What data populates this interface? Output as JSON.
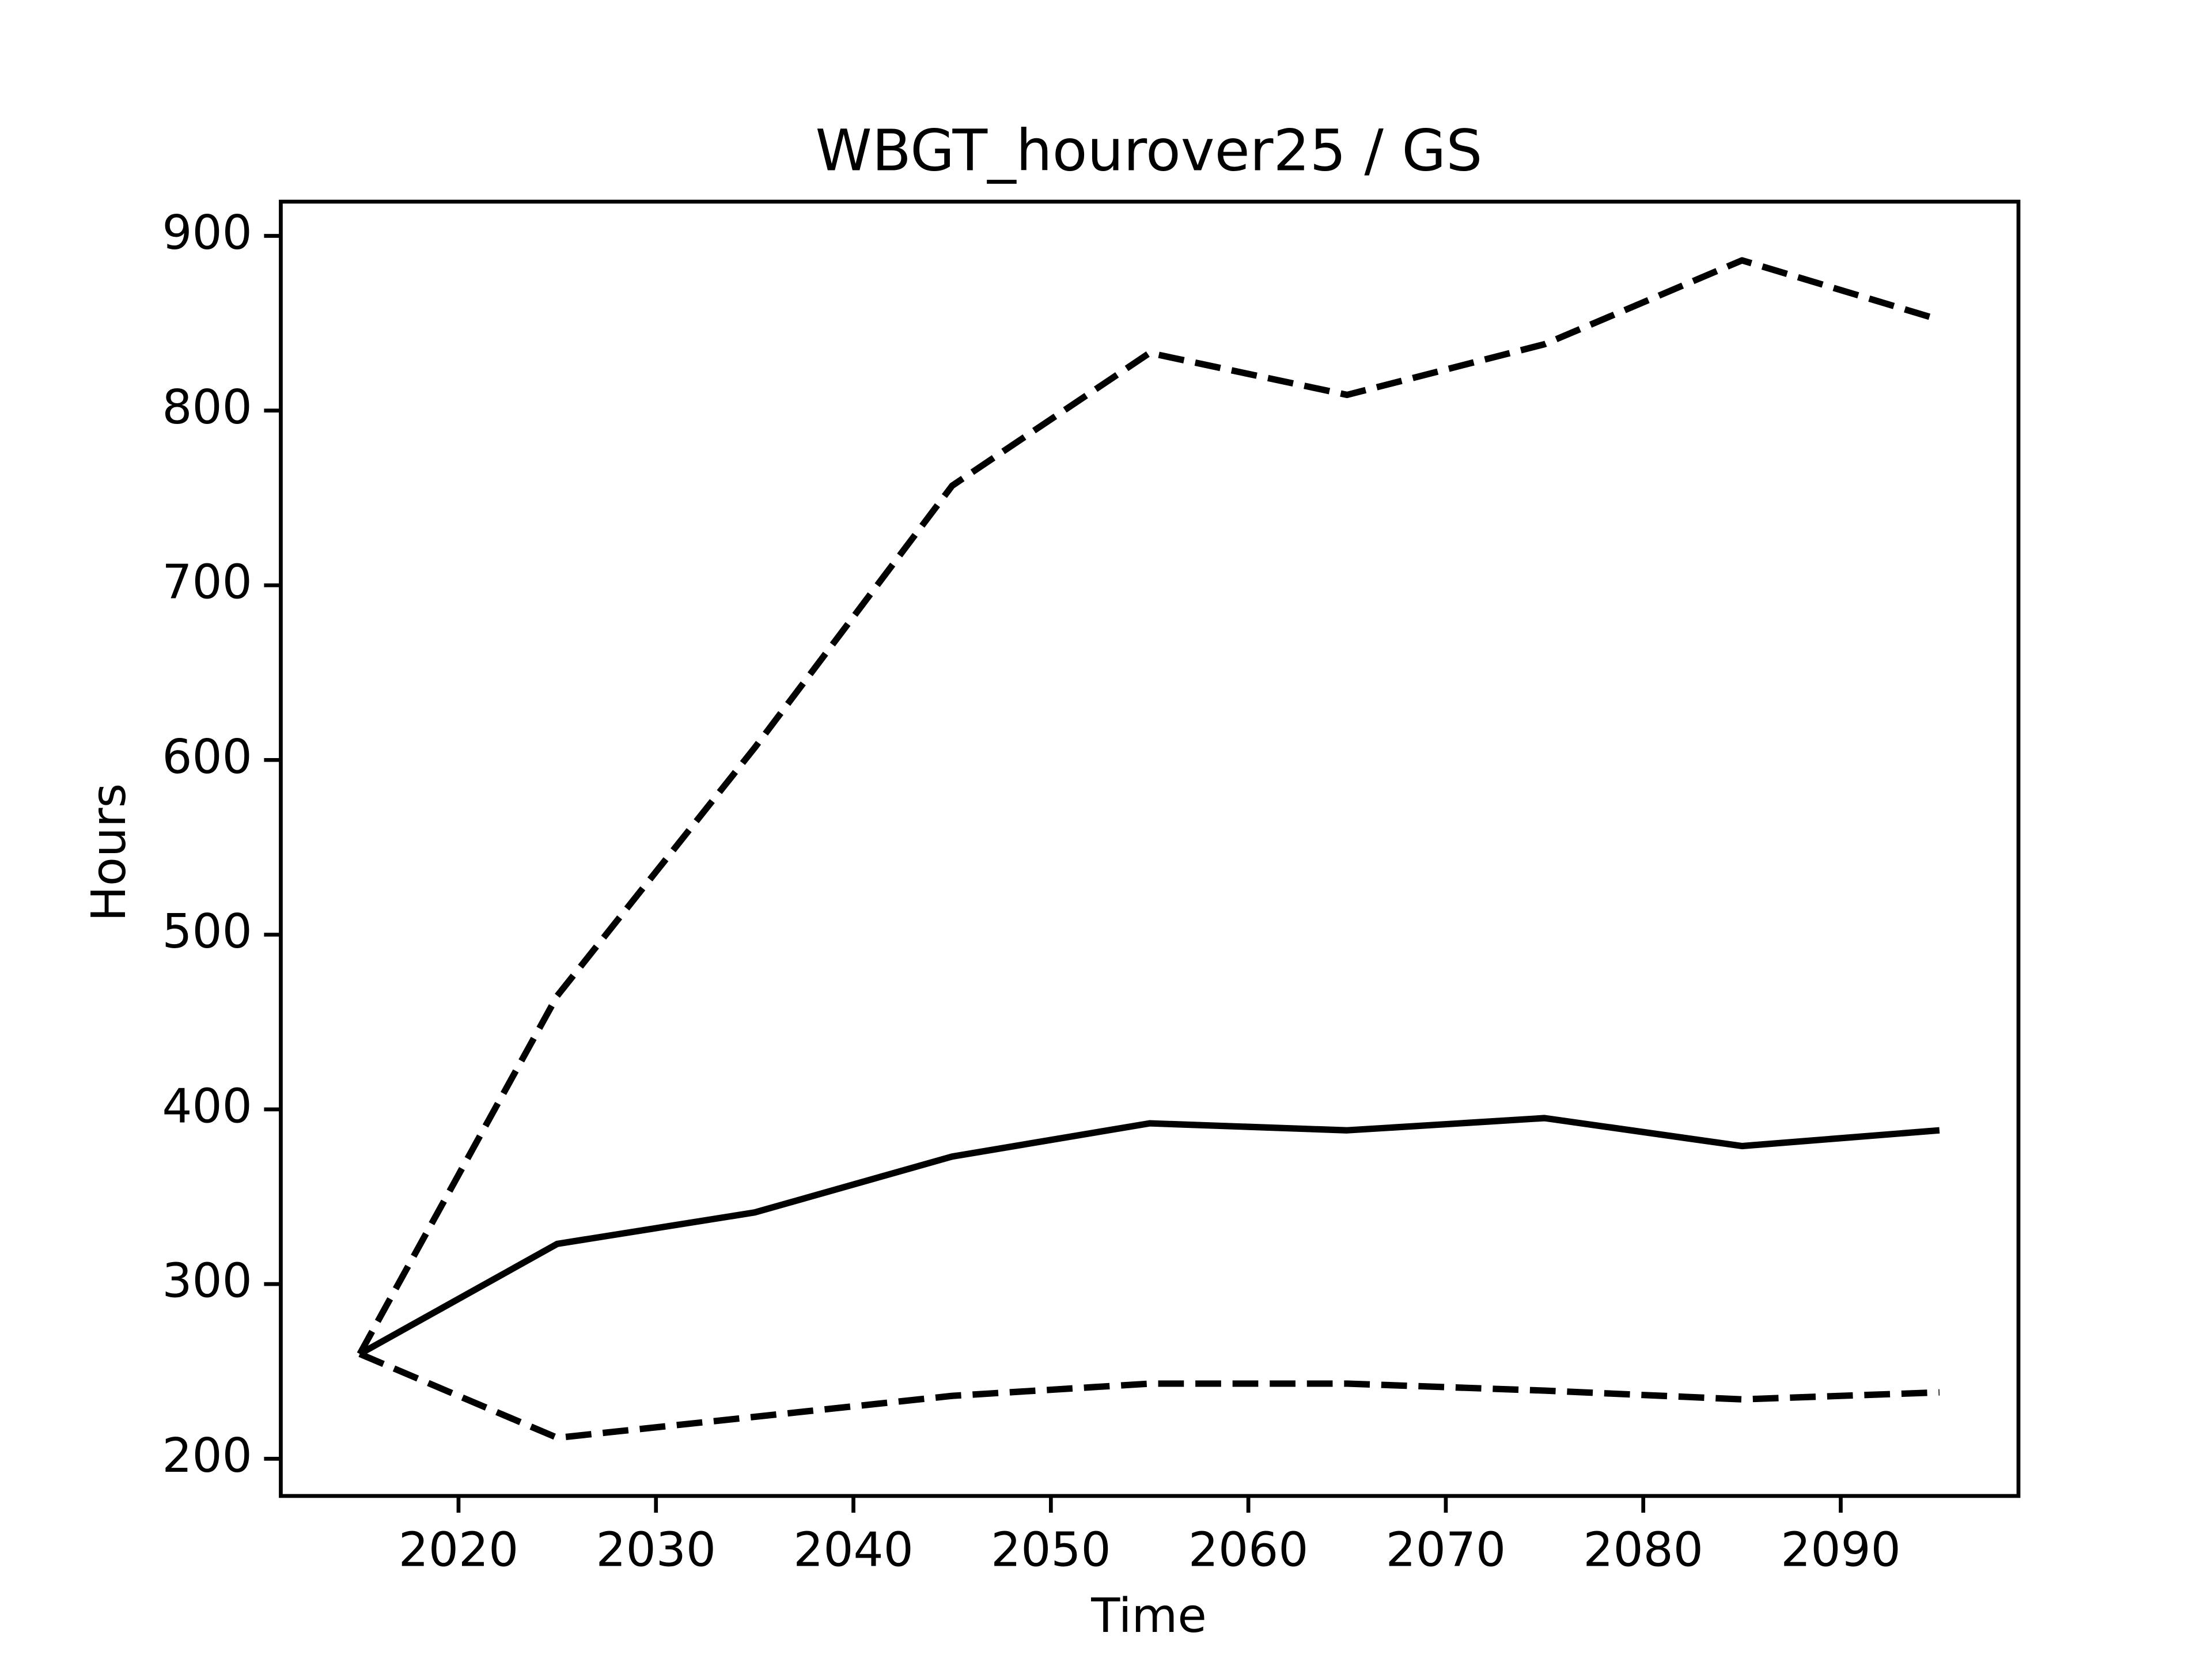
{
  "chart_data": {
    "type": "line",
    "title": "WBGT_hourover25 / GS",
    "x_label": "Time",
    "y_label": "Hours",
    "x": [
      2015,
      2025,
      2035,
      2045,
      2055,
      2065,
      2075,
      2085,
      2095
    ],
    "series": [
      {
        "color": "#000000",
        "dashed": false,
        "values": [
          260,
          323,
          341,
          373,
          392,
          388,
          395,
          379,
          388
        ]
      },
      {
        "color": "#000000",
        "dashed": true,
        "values": [
          260,
          465,
          607,
          757,
          833,
          809,
          838,
          886,
          852
        ]
      },
      {
        "color": "#000000",
        "dashed": true,
        "values": [
          260,
          212,
          224,
          236,
          243,
          243,
          239,
          234,
          238
        ]
      }
    ],
    "xlim": [
      2011,
      2099
    ],
    "xticks": [
      2020,
      2030,
      2040,
      2050,
      2060,
      2070,
      2080,
      2090
    ],
    "ylim": [
      178.7,
      919.6
    ],
    "yticks": [
      200,
      300,
      400,
      500,
      600,
      700,
      800,
      900
    ],
    "grid": false
  }
}
